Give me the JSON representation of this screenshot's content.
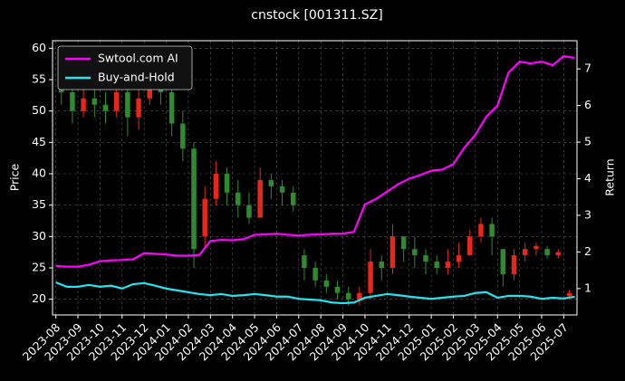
{
  "chart_data": {
    "type": "candlestick",
    "title": "cnstock [001311.SZ]",
    "y_label": "Price",
    "y2_label": "Return",
    "xlim": [
      -0.15,
      23.6
    ],
    "xticks": [
      {
        "value": 0,
        "label": "2023-08"
      },
      {
        "value": 1,
        "label": "2023-09"
      },
      {
        "value": 2,
        "label": "2023-10"
      },
      {
        "value": 3,
        "label": "2023-11"
      },
      {
        "value": 4,
        "label": "2023-12"
      },
      {
        "value": 5,
        "label": "2024-01"
      },
      {
        "value": 6,
        "label": "2024-02"
      },
      {
        "value": 7,
        "label": "2024-03"
      },
      {
        "value": 8,
        "label": "2024-04"
      },
      {
        "value": 9,
        "label": "2024-05"
      },
      {
        "value": 10,
        "label": "2024-06"
      },
      {
        "value": 11,
        "label": "2024-07"
      },
      {
        "value": 12,
        "label": "2024-08"
      },
      {
        "value": 13,
        "label": "2024-09"
      },
      {
        "value": 14,
        "label": "2024-10"
      },
      {
        "value": 15,
        "label": "2024-11"
      },
      {
        "value": 16,
        "label": "2024-12"
      },
      {
        "value": 17,
        "label": "2025-01"
      },
      {
        "value": 18,
        "label": "2025-02"
      },
      {
        "value": 19,
        "label": "2025-03"
      },
      {
        "value": 20,
        "label": "2025-04"
      },
      {
        "value": 21,
        "label": "2025-05"
      },
      {
        "value": 22,
        "label": "2025-06"
      },
      {
        "value": 23,
        "label": "2025-07"
      }
    ],
    "ylim": [
      17.5,
      61.2
    ],
    "yticks": [
      20,
      25,
      30,
      35,
      40,
      45,
      50,
      55,
      60
    ],
    "y2lim": [
      0.28,
      7.77
    ],
    "y2ticks": [
      1,
      2,
      3,
      4,
      5,
      6,
      7
    ],
    "grid": true,
    "legend": "upper left",
    "up_color": "#e8261c",
    "down_color": "#2e8b2e",
    "candles": {
      "x": [
        0.25,
        0.75,
        1.25,
        1.75,
        2.25,
        2.75,
        3.25,
        3.75,
        4.25,
        4.75,
        5.25,
        5.75,
        6.25,
        6.75,
        7.25,
        7.75,
        8.25,
        8.75,
        9.25,
        9.75,
        10.25,
        10.75,
        11.25,
        11.75,
        12.25,
        12.75,
        13.25,
        13.75,
        14.25,
        14.75,
        15.25,
        15.75,
        16.25,
        16.75,
        17.25,
        17.75,
        18.25,
        18.75,
        19.25,
        19.75,
        20.25,
        20.75,
        21.25,
        21.75,
        22.25,
        22.75,
        23.25
      ],
      "open": [
        55,
        53,
        50,
        52,
        51,
        50,
        53,
        49,
        52,
        55,
        53,
        48,
        44,
        30,
        36,
        40,
        37,
        35,
        33,
        39,
        38,
        37,
        27,
        25,
        23,
        22,
        21,
        20,
        21,
        26,
        25,
        30,
        28,
        27,
        26,
        25,
        26,
        27,
        30,
        32,
        28,
        24,
        27,
        28,
        28,
        27,
        20.5
      ],
      "close": [
        53,
        50,
        52,
        51,
        50,
        53,
        49,
        52,
        55,
        53,
        48,
        44,
        28,
        36,
        40,
        37,
        35,
        33,
        39,
        38,
        37,
        35,
        25,
        23,
        22,
        21,
        20,
        21,
        26,
        25,
        30,
        28,
        27,
        26,
        25,
        26,
        27,
        30,
        32,
        30,
        24,
        27,
        28,
        28.5,
        27,
        27.5,
        21
      ],
      "low": [
        51,
        48,
        49,
        49,
        48,
        49,
        46,
        47,
        51,
        51,
        46,
        42,
        25,
        28,
        35,
        35,
        33,
        32,
        33,
        36,
        35,
        34,
        23,
        22,
        21,
        20,
        19,
        19,
        20,
        23,
        24,
        26,
        25,
        24,
        24,
        24,
        25,
        27,
        29,
        27,
        22,
        23,
        26,
        27,
        26.5,
        26.5,
        20
      ],
      "high": [
        57,
        55,
        54,
        54,
        53,
        55,
        54,
        54,
        57,
        56,
        55,
        50,
        45,
        38,
        42,
        41,
        39,
        37,
        41,
        40,
        39,
        38,
        28,
        26,
        24,
        23,
        22,
        22,
        28,
        27,
        32,
        30,
        30,
        28,
        27,
        28,
        29,
        31,
        33,
        33,
        27,
        28,
        29,
        29,
        28.5,
        28,
        21.5
      ]
    },
    "x": [
      0,
      0.5,
      1,
      1.5,
      2,
      2.5,
      3,
      3.5,
      4,
      4.5,
      5,
      5.5,
      6,
      6.5,
      7,
      7.5,
      8,
      8.5,
      9,
      9.5,
      10,
      10.5,
      11,
      11.5,
      12,
      12.5,
      13,
      13.5,
      14,
      14.5,
      15,
      15.5,
      16,
      16.5,
      17,
      17.5,
      18,
      18.5,
      19,
      19.5,
      20,
      20.5,
      21,
      21.5,
      22,
      22.5,
      23,
      23.5
    ],
    "series": [
      {
        "name": "Swtool.com AI",
        "color": "#ff00ff",
        "axis": "y2",
        "values": [
          1.62,
          1.6,
          1.6,
          1.65,
          1.75,
          1.77,
          1.78,
          1.8,
          1.97,
          1.95,
          1.93,
          1.9,
          1.9,
          1.92,
          2.3,
          2.33,
          2.32,
          2.35,
          2.47,
          2.48,
          2.5,
          2.47,
          2.45,
          2.47,
          2.48,
          2.5,
          2.5,
          2.55,
          3.3,
          3.45,
          3.65,
          3.85,
          4.0,
          4.1,
          4.22,
          4.25,
          4.4,
          4.85,
          5.2,
          5.7,
          6.0,
          6.9,
          7.2,
          7.15,
          7.2,
          7.1,
          7.35,
          7.3
        ]
      },
      {
        "name": "Buy-and-Hold",
        "color": "#22e5f0",
        "axis": "y2",
        "values": [
          1.17,
          1.05,
          1.05,
          1.1,
          1.05,
          1.08,
          1.0,
          1.12,
          1.15,
          1.08,
          1.0,
          0.95,
          0.9,
          0.85,
          0.82,
          0.85,
          0.8,
          0.82,
          0.85,
          0.82,
          0.78,
          0.78,
          0.72,
          0.7,
          0.68,
          0.62,
          0.6,
          0.62,
          0.75,
          0.8,
          0.85,
          0.82,
          0.78,
          0.75,
          0.72,
          0.75,
          0.78,
          0.8,
          0.88,
          0.9,
          0.75,
          0.8,
          0.8,
          0.78,
          0.72,
          0.75,
          0.73,
          0.78
        ]
      }
    ]
  }
}
